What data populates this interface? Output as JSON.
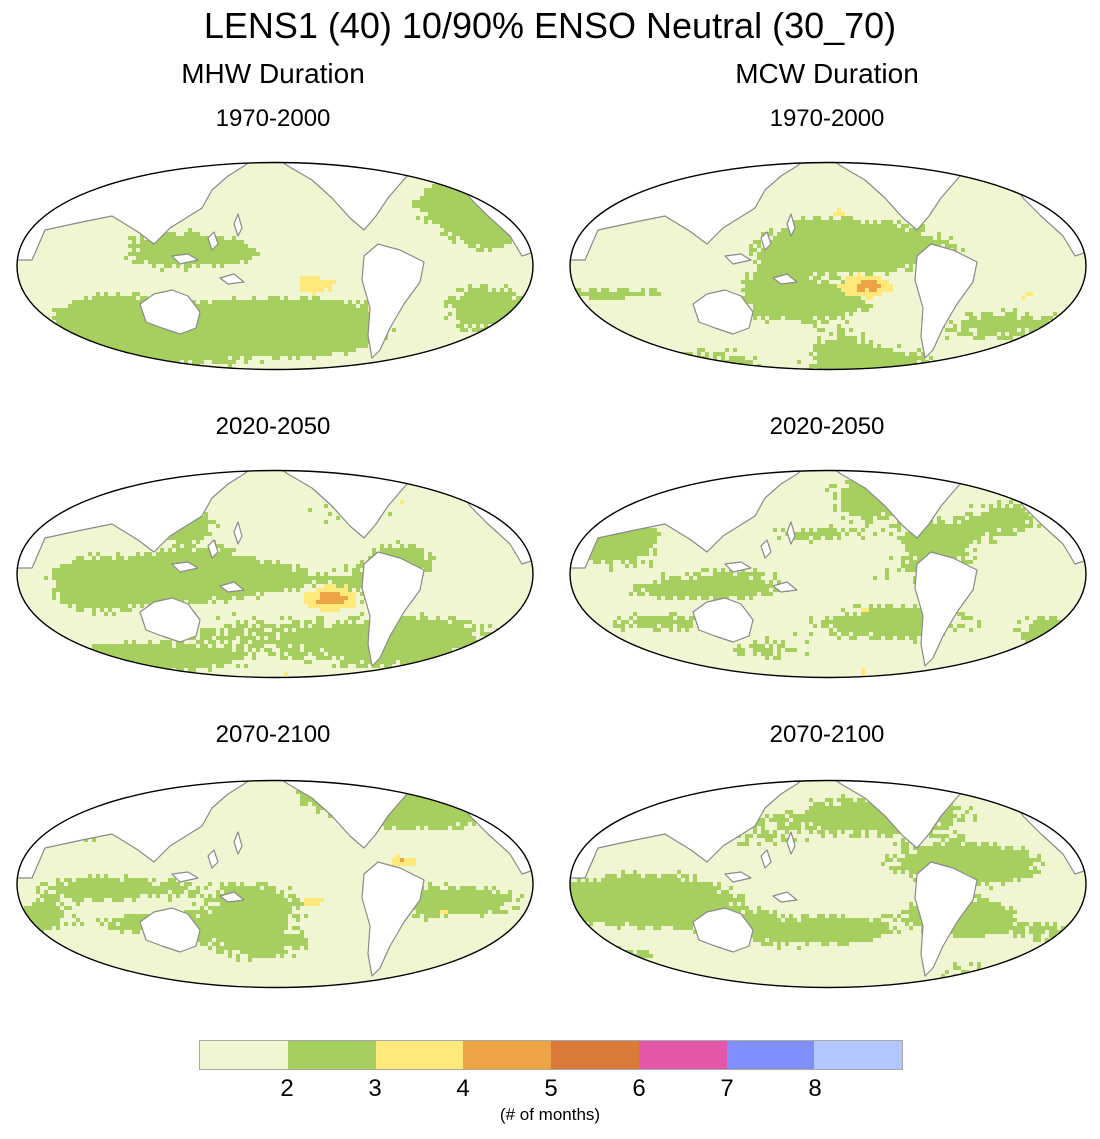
{
  "title": "LENS1 (40) 10/90% ENSO Neutral (30_70)",
  "columns": [
    {
      "title": "MHW Duration",
      "panels": [
        {
          "period": "1970-2000"
        },
        {
          "period": "2020-2050"
        },
        {
          "period": "2070-2100"
        }
      ]
    },
    {
      "title": "MCW Duration",
      "panels": [
        {
          "period": "1970-2000"
        },
        {
          "period": "2020-2050"
        },
        {
          "period": "2070-2100"
        }
      ]
    }
  ],
  "colorbar": {
    "colors": [
      "#f0f5d2",
      "#a6cf5f",
      "#ffe97b",
      "#eca445",
      "#d9793a",
      "#e456a7",
      "#7f8fff",
      "#b4c6ff"
    ],
    "labels": [
      "2",
      "3",
      "4",
      "5",
      "6",
      "7",
      "8"
    ],
    "units": "(# of months)"
  },
  "colors": {
    "ocean_base": "#f0f5d2",
    "land": "#ffffff",
    "coast": "#8a8a8a",
    "border": "#000000"
  }
}
